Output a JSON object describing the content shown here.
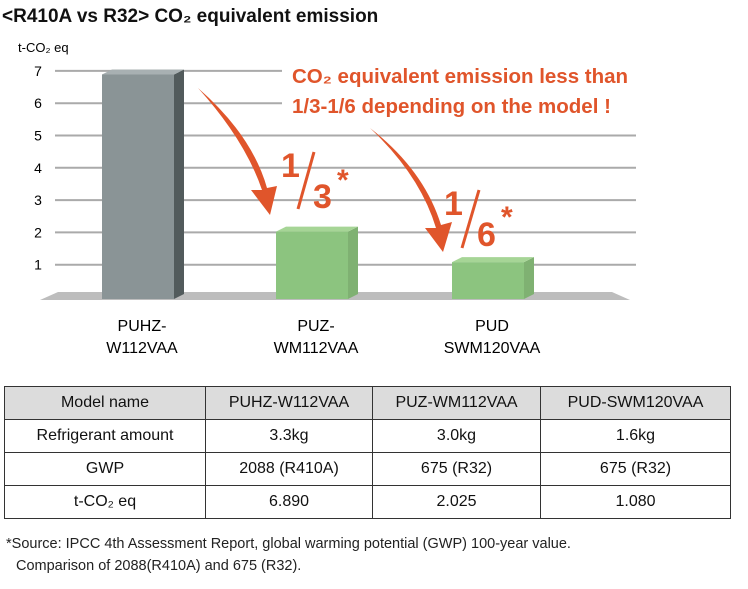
{
  "title": "<R410A vs R32> CO₂ equivalent emission",
  "chart_data": {
    "type": "bar",
    "title": "<R410A vs R32> CO₂ equivalent emission",
    "ylabel": "t-CO₂ eq",
    "xlabel": "",
    "ylim": [
      0,
      7
    ],
    "yticks": [
      1,
      2,
      3,
      4,
      5,
      6,
      7
    ],
    "grid": true,
    "categories": [
      [
        "PUHZ-",
        "W112VAA"
      ],
      [
        "PUZ-",
        "WM112VAA"
      ],
      [
        "PUD",
        "SWM120VAA"
      ]
    ],
    "values": [
      6.89,
      2.025,
      1.08
    ],
    "bar_colors": [
      "#8a9496",
      "#8cc47f",
      "#8cc47f"
    ],
    "annotations": {
      "headline": [
        "CO₂ equivalent emission less than",
        "1/3-1/6 depending on the model !"
      ],
      "ratio_1": {
        "num": "1",
        "den": "3",
        "mark": "*"
      },
      "ratio_2": {
        "num": "1",
        "den": "6",
        "mark": "*"
      }
    },
    "accent_color": "#e0552b"
  },
  "table": {
    "header": [
      "Model name",
      "PUHZ-W112VAA",
      "PUZ-WM112VAA",
      "PUD-SWM120VAA"
    ],
    "rows": [
      [
        "Refrigerant amount",
        "3.3kg",
        "3.0kg",
        "1.6kg"
      ],
      [
        "GWP",
        "2088 (R410A)",
        "675 (R32)",
        "675 (R32)"
      ],
      [
        "t-CO₂ eq",
        "6.890",
        "2.025",
        "1.080"
      ]
    ]
  },
  "footnote": [
    "*Source: IPCC 4th Assessment Report, global warming potential (GWP) 100-year value.",
    "Comparison of 2088(R410A) and 675 (R32)."
  ]
}
